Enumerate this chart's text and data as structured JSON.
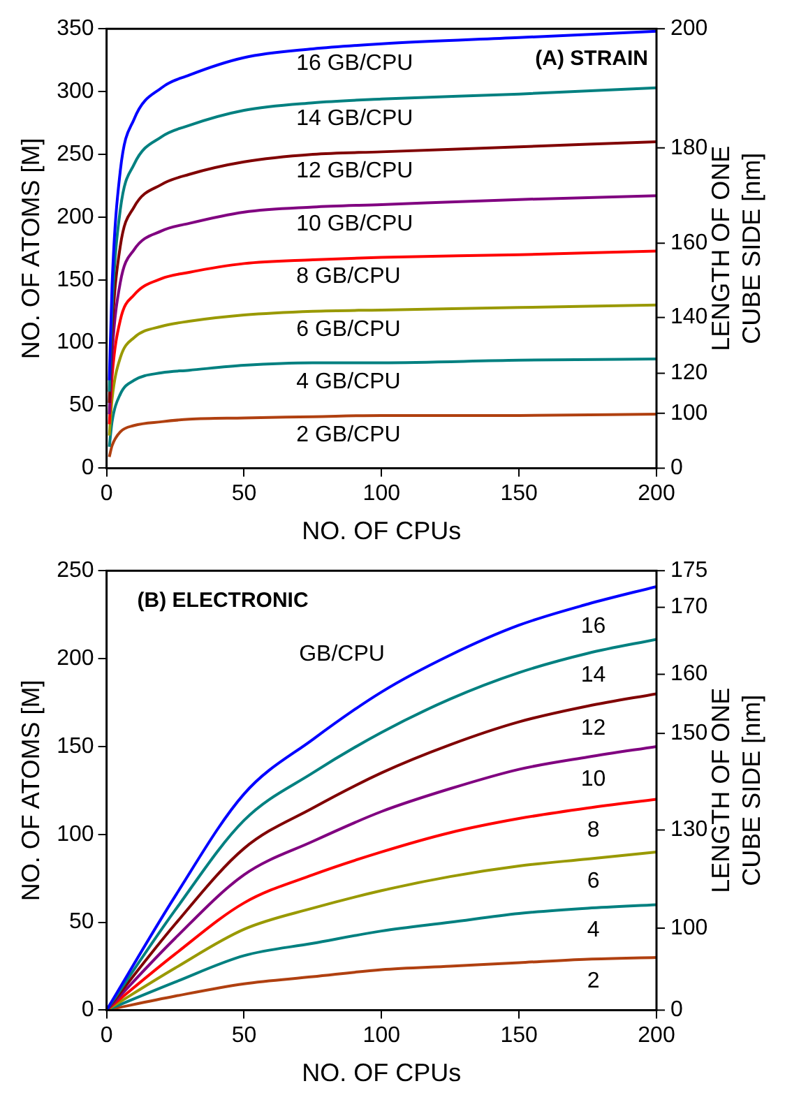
{
  "chart_data": [
    {
      "type": "line",
      "title": "(A) STRAIN",
      "xlabel": "NO. OF CPUs",
      "ylabel": "NO. OF ATOMS [M]",
      "y2label": "LENGTH OF ONE CUBE SIDE [nm]",
      "x": [
        1,
        2,
        5,
        10,
        20,
        30,
        50,
        75,
        100,
        150,
        200
      ],
      "xlim": [
        0,
        200
      ],
      "xticks": [
        0,
        50,
        100,
        150,
        200
      ],
      "ylim": [
        0,
        350
      ],
      "yticks": [
        0,
        50,
        100,
        150,
        200,
        250,
        300,
        350
      ],
      "annotations": [
        "0",
        "100",
        "120",
        "140",
        "160",
        "180",
        "200"
      ],
      "marker": "none",
      "line_style": "solid",
      "legend": false,
      "series": [
        {
          "name": "16 GB/CPU",
          "color": "#0000ff",
          "values": [
            70,
            146,
            237,
            278,
            303,
            313,
            327,
            334,
            338,
            343,
            348
          ]
        },
        {
          "name": "14 GB/CPU",
          "color": "#008080",
          "values": [
            61,
            127,
            206,
            242,
            264,
            273,
            285,
            291,
            294,
            298,
            303
          ]
        },
        {
          "name": "12 GB/CPU",
          "color": "#800000",
          "values": [
            52,
            109,
            177,
            208,
            226,
            234,
            244,
            250,
            252,
            256,
            260
          ]
        },
        {
          "name": "10 GB/CPU",
          "color": "#800080",
          "values": [
            43,
            91,
            148,
            174,
            189,
            195,
            204,
            208,
            210,
            214,
            217
          ]
        },
        {
          "name": "8 GB/CPU",
          "color": "#ff0000",
          "values": [
            35,
            73,
            118,
            138,
            151,
            156,
            163,
            166,
            168,
            170,
            173
          ]
        },
        {
          "name": "6 GB/CPU",
          "color": "#999900",
          "values": [
            26,
            55,
            88,
            104,
            113,
            117,
            122,
            125,
            126,
            128,
            130
          ]
        },
        {
          "name": "4 GB/CPU",
          "color": "#008080",
          "values": [
            17,
            37,
            59,
            70,
            76,
            78,
            82,
            84,
            84,
            86,
            87
          ]
        },
        {
          "name": "2 GB/CPU",
          "color": "#b04010",
          "values": [
            9,
            18,
            29,
            34,
            37,
            39,
            40,
            41,
            42,
            42,
            43
          ]
        }
      ]
    },
    {
      "type": "line",
      "title": "(B) ELECTRONIC",
      "xlabel": "NO. OF CPUs",
      "ylabel": "NO. OF ATOMS [M]",
      "y2label": "LENGTH OF ONE CUBE SIDE [nm]",
      "annotations": [
        "GB/CPU",
        "0",
        "100",
        "130",
        "150",
        "160",
        "170",
        "175"
      ],
      "x": [
        0,
        25,
        50,
        75,
        100,
        125,
        150,
        175,
        200
      ],
      "xlim": [
        0,
        200
      ],
      "xticks": [
        0,
        50,
        100,
        150,
        200
      ],
      "ylim": [
        0,
        250
      ],
      "yticks": [
        0,
        50,
        100,
        150,
        200,
        250
      ],
      "marker": "none",
      "line_style": "solid",
      "legend": false,
      "series": [
        {
          "name": "16",
          "color": "#0000ff",
          "values": [
            0,
            65,
            123,
            154,
            181,
            202,
            219,
            231,
            241
          ]
        },
        {
          "name": "14",
          "color": "#008080",
          "values": [
            0,
            57,
            108,
            135,
            158,
            177,
            192,
            203,
            211
          ]
        },
        {
          "name": "12",
          "color": "#800000",
          "values": [
            0,
            49,
            92,
            115,
            135,
            151,
            164,
            173,
            180
          ]
        },
        {
          "name": "10",
          "color": "#800080",
          "values": [
            0,
            41,
            77,
            96,
            113,
            126,
            137,
            144,
            150
          ]
        },
        {
          "name": "8",
          "color": "#ff0000",
          "values": [
            0,
            32,
            61,
            77,
            90,
            101,
            109,
            115,
            120
          ]
        },
        {
          "name": "6",
          "color": "#999900",
          "values": [
            0,
            24,
            46,
            58,
            68,
            76,
            82,
            86,
            90
          ]
        },
        {
          "name": "4",
          "color": "#008080",
          "values": [
            0,
            16,
            31,
            38,
            45,
            50,
            55,
            58,
            60
          ]
        },
        {
          "name": "2",
          "color": "#b04010",
          "values": [
            0,
            8,
            15,
            19,
            23,
            25,
            27,
            29,
            30
          ]
        }
      ]
    }
  ]
}
